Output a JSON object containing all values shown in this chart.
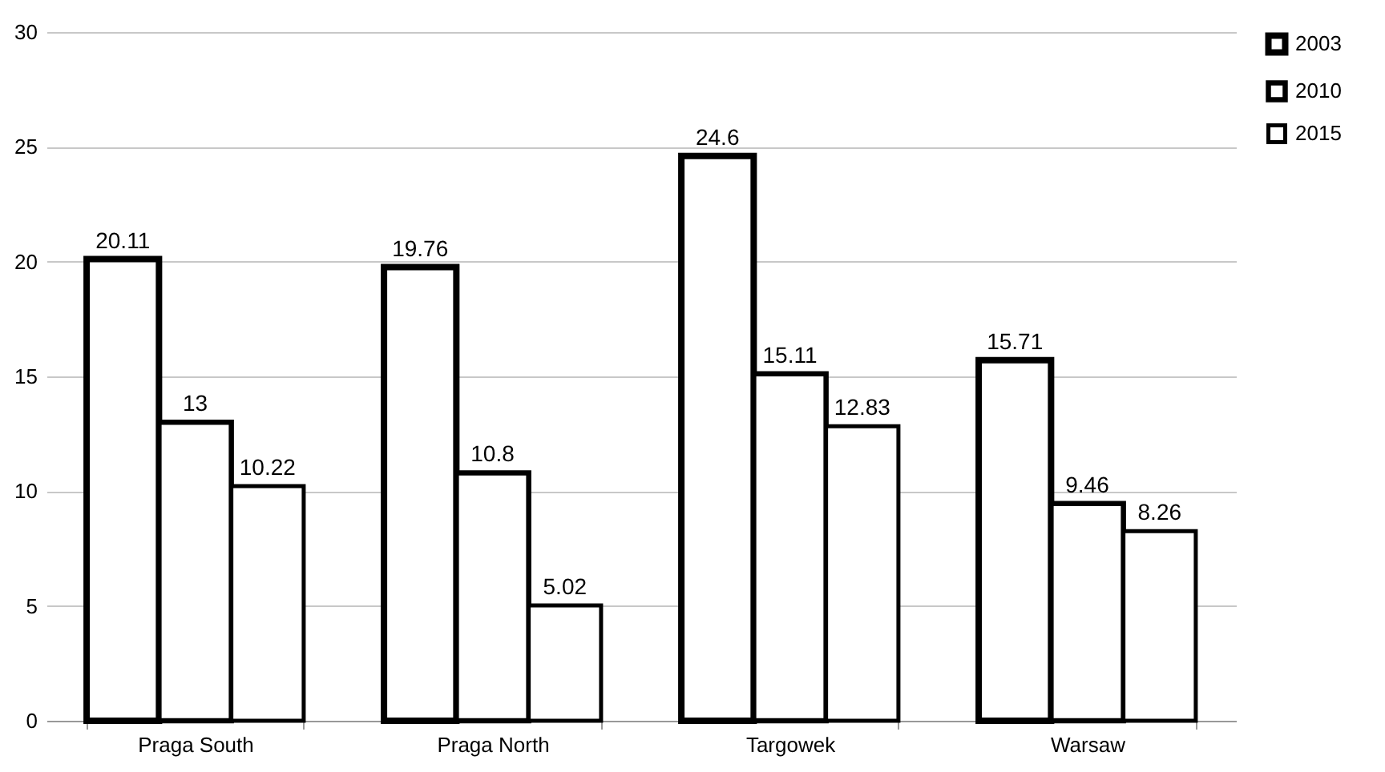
{
  "chart_data": {
    "type": "bar",
    "categories": [
      "Praga South",
      "Praga North",
      "Targowek",
      "Warsaw"
    ],
    "series": [
      {
        "name": "2003",
        "color": "#000000",
        "values": [
          20.11,
          19.76,
          24.6,
          15.71
        ]
      },
      {
        "name": "2010",
        "color": "#000000",
        "values": [
          13,
          10.8,
          15.11,
          9.46
        ]
      },
      {
        "name": "2015",
        "color": "#000000",
        "values": [
          10.22,
          5.02,
          12.83,
          8.26
        ]
      }
    ],
    "ylim": [
      0,
      30
    ],
    "yticks": [
      0,
      5,
      10,
      15,
      20,
      25,
      30
    ],
    "grid": "y",
    "legend": "right",
    "data_labels": true
  }
}
